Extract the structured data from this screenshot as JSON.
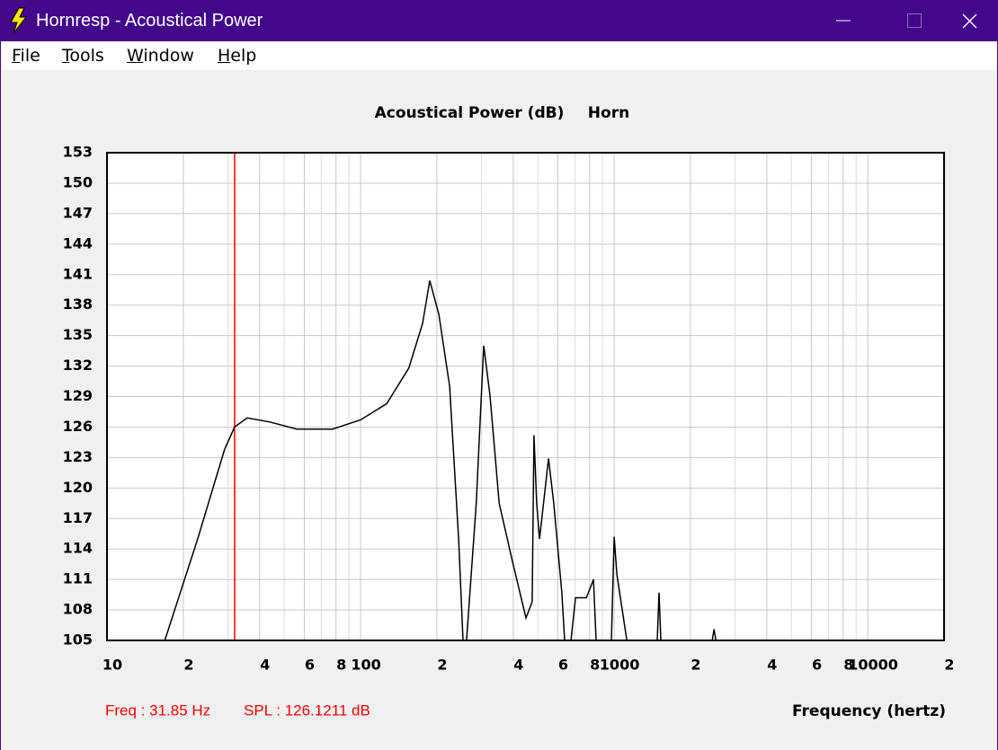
{
  "window": {
    "title": "Hornresp - Acoustical Power"
  },
  "menu": [
    "File",
    "Tools",
    "Window",
    "Help"
  ],
  "chart_data": {
    "type": "line",
    "title": "Acoustical Power (dB)",
    "subtitle": "Horn",
    "x_label": "Frequency (hertz)",
    "log_x": true,
    "grid": true,
    "xlim": [
      10,
      20000
    ],
    "ylim": [
      105,
      153
    ],
    "yticks": [
      105,
      108,
      111,
      114,
      117,
      120,
      123,
      126,
      129,
      132,
      135,
      138,
      141,
      144,
      147,
      150,
      153
    ],
    "xticks": [
      10,
      {
        "value": 20,
        "label": "2"
      },
      {
        "value": 40,
        "label": "4"
      },
      {
        "value": 60,
        "label": "6"
      },
      {
        "value": 80,
        "label": "8"
      },
      100,
      {
        "value": 200,
        "label": "2"
      },
      {
        "value": 400,
        "label": "4"
      },
      {
        "value": 600,
        "label": "6"
      },
      {
        "value": 800,
        "label": "8"
      },
      1000,
      {
        "value": 2000,
        "label": "2"
      },
      {
        "value": 4000,
        "label": "4"
      },
      {
        "value": 6000,
        "label": "6"
      },
      {
        "value": 8000,
        "label": "8"
      },
      10000,
      {
        "value": 20000,
        "label": "2"
      }
    ],
    "xgrid_minor": [
      30,
      50,
      70,
      90,
      300,
      500,
      700,
      900,
      3000,
      5000,
      7000,
      9000
    ],
    "series": [
      {
        "name": "Horn",
        "color": "#000000",
        "x": [
          16.9,
          22.8,
          29.1,
          31.85,
          35.7,
          43.9,
          56.0,
          77.6,
          100,
          126.8,
          155,
          175.6,
          187.5,
          203.5,
          224.5,
          243.6,
          253.6,
          null,
          261.8,
          286,
          306,
          324,
          352,
          397,
          449,
          475,
          483,
          495,
          508,
          551,
          578,
          622,
          638,
          null,
          676,
          704,
          777,
          829,
          849,
          null,
          975,
          1000,
          1025,
          1122,
          null,
          1479,
          1503,
          1528,
          null,
          2438,
          2477,
          2518
        ],
        "values": [
          105,
          115.0,
          123.8,
          126.0,
          126.9,
          126.5,
          125.8,
          125.8,
          126.7,
          128.3,
          131.8,
          136.2,
          140.4,
          137.1,
          130.0,
          115.0,
          105,
          null,
          105,
          118.5,
          134.0,
          129.1,
          118.5,
          112.8,
          107.2,
          108.8,
          125.2,
          118.5,
          115.0,
          122.9,
          118.5,
          109.7,
          105,
          null,
          105,
          109.2,
          109.2,
          111.0,
          105,
          null,
          105,
          115.2,
          111.5,
          105,
          null,
          105,
          109.7,
          105,
          null,
          105,
          106.1,
          105
        ]
      }
    ],
    "cursor": {
      "freq": 31.85,
      "spl": 126.1211,
      "color": "#ff0000",
      "labels": [
        "Freq : 31.85 Hz",
        "SPL : 126.1211 dB"
      ]
    }
  }
}
